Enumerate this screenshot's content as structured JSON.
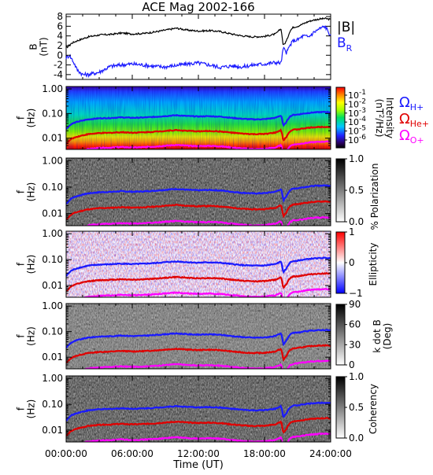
{
  "title": "ACE Mag 2002-166",
  "xaxis": {
    "label": "Time (UT)",
    "ticks": [
      "00:00:00",
      "06:00:00",
      "12:00:00",
      "18:00:00",
      "24:00:00"
    ],
    "range_hours": [
      0,
      24
    ]
  },
  "colors": {
    "black": "#000000",
    "blue": "#1a1aff",
    "red": "#e00000",
    "magenta": "#ff00ff"
  },
  "chart_data": [
    {
      "type": "line",
      "panel": "magnetic-field",
      "ylabel": "B\n(nT)",
      "ylim": [
        -5,
        8.5
      ],
      "yticks": [
        "8",
        "6",
        "4",
        "2",
        "0",
        "-2",
        "-4"
      ],
      "ytick_values": [
        8,
        6,
        4,
        2,
        0,
        -2,
        -4
      ],
      "legend": {
        "b_total": "|B|",
        "b_r": "B",
        "b_r_sub": "R"
      },
      "series": [
        {
          "name": "|B|",
          "color": "#000000",
          "x": [
            0,
            0.5,
            1,
            2,
            3,
            4,
            5,
            6,
            7,
            8,
            9,
            10,
            11,
            12,
            13,
            14,
            15,
            16,
            17,
            18,
            19,
            19.5,
            19.7,
            20,
            20.3,
            20.6,
            21,
            21.5,
            22,
            22.5,
            23,
            23.5,
            24
          ],
          "y": [
            1.5,
            2.5,
            3.0,
            3.8,
            4.2,
            4.3,
            4.6,
            4.4,
            4.5,
            4.8,
            5.2,
            5.6,
            5.2,
            5.0,
            5.1,
            4.9,
            4.4,
            4.0,
            3.8,
            3.9,
            4.4,
            5.5,
            2.0,
            3.0,
            5.0,
            5.8,
            6.0,
            6.5,
            7.0,
            7.3,
            7.5,
            7.6,
            7.4
          ]
        },
        {
          "name": "B_R",
          "color": "#1a1aff",
          "x": [
            0,
            0.3,
            0.7,
            1,
            1.5,
            2,
            3,
            4,
            5,
            6,
            7,
            8,
            9,
            10,
            11,
            12,
            13,
            14,
            15,
            16,
            17,
            18,
            19,
            19.5,
            19.7,
            20,
            20.3,
            20.6,
            21,
            21.5,
            22,
            22.5,
            23,
            23.5,
            24
          ],
          "y": [
            -0.5,
            0.0,
            -1.5,
            -3.0,
            -4.0,
            -4.0,
            -3.5,
            -2.3,
            -2.0,
            -1.8,
            -2.0,
            -2.3,
            -2.4,
            -2.1,
            -1.8,
            -1.6,
            -2.0,
            -2.5,
            -2.2,
            -2.4,
            -2.0,
            -1.8,
            -1.5,
            -1.6,
            1.5,
            0.5,
            2.0,
            3.0,
            3.2,
            4.0,
            3.8,
            4.8,
            5.5,
            6.0,
            4.0
          ]
        }
      ]
    },
    {
      "type": "heatmap",
      "panel": "intensity",
      "ylabel": "f\n(Hz)",
      "yticks": [
        "1.00",
        "0.10",
        "0.01"
      ],
      "ytick_values": [
        1.0,
        0.1,
        0.01
      ],
      "colorbar": {
        "label": "Intensity",
        "units": "(nT",
        "units_sup": "2",
        "units_rest": "/Hz)",
        "ticks": [
          "10",
          "10",
          "10",
          "10",
          "10",
          "10"
        ],
        "tick_exponents": [
          "-1",
          "-2",
          "-3",
          "-4",
          "-5",
          "-6"
        ],
        "colormap": "rainbow"
      },
      "legend": [
        {
          "symbol": "Ω",
          "sub": "H+",
          "color": "#1a1aff"
        },
        {
          "symbol": "Ω",
          "sub": "He+",
          "color": "#e00000"
        },
        {
          "symbol": "Ω",
          "sub": "O+",
          "color": "#ff00ff"
        }
      ]
    },
    {
      "type": "heatmap",
      "panel": "polarization",
      "ylabel": "f\n(Hz)",
      "yticks": [
        "1.00",
        "0.10",
        "0.01"
      ],
      "colorbar": {
        "label": "% Polarization",
        "ticks": [
          "1.0",
          "0.5",
          "0.0"
        ],
        "colormap": "gray"
      }
    },
    {
      "type": "heatmap",
      "panel": "ellipticity",
      "ylabel": "f\n(Hz)",
      "yticks": [
        "1.00",
        "0.10",
        "0.01"
      ],
      "colorbar": {
        "label": "Ellipticity",
        "ticks": [
          "1",
          "0",
          "−1"
        ],
        "colormap": "blue-white-red"
      }
    },
    {
      "type": "heatmap",
      "panel": "kdotb",
      "ylabel": "f\n(Hz)",
      "yticks": [
        "1.00",
        "0.10",
        "0.01"
      ],
      "colorbar": {
        "label": "k dot B",
        "units": "(Deg)",
        "ticks": [
          "90",
          "60",
          "30",
          "0"
        ],
        "colormap": "gray"
      }
    },
    {
      "type": "heatmap",
      "panel": "coherency",
      "ylabel": "f\n(Hz)",
      "yticks": [
        "1.00",
        "0.10",
        "0.01"
      ],
      "colorbar": {
        "label": "Coherency",
        "ticks": [
          "1.0",
          "0.5",
          "0.0"
        ],
        "colormap": "gray"
      }
    }
  ],
  "gyrofrequency": {
    "x": [
      0,
      0.5,
      1,
      2,
      3,
      4,
      5,
      6,
      7,
      8,
      9,
      10,
      11,
      12,
      13,
      14,
      15,
      16,
      17,
      18,
      19,
      19.5,
      19.7,
      20,
      20.3,
      20.6,
      21,
      21.5,
      22,
      22.5,
      23,
      23.5,
      24
    ],
    "f_h_hz": [
      0.023,
      0.038,
      0.046,
      0.058,
      0.064,
      0.066,
      0.07,
      0.067,
      0.069,
      0.073,
      0.079,
      0.085,
      0.079,
      0.076,
      0.078,
      0.075,
      0.067,
      0.061,
      0.058,
      0.059,
      0.067,
      0.084,
      0.03,
      0.046,
      0.076,
      0.088,
      0.091,
      0.099,
      0.106,
      0.111,
      0.114,
      0.116,
      0.113
    ],
    "mass_ratio_he": 4,
    "mass_ratio_o": 16
  }
}
